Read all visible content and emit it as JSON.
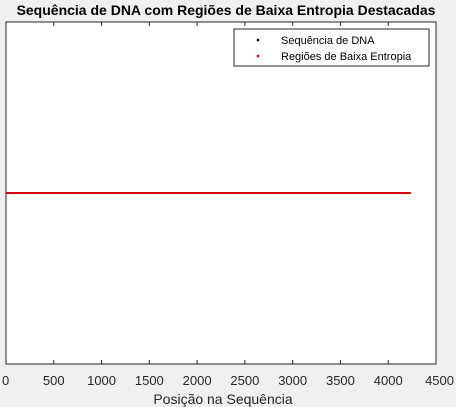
{
  "chart_data": {
    "type": "line",
    "title": "Sequência de DNA com Regiões de Baixa Entropia Destacadas",
    "xlabel": "Posição na Sequência",
    "ylabel": "",
    "xlim": [
      0,
      4500
    ],
    "x_ticks": [
      0,
      500,
      1000,
      1500,
      2000,
      2500,
      3000,
      3500,
      4000,
      4500
    ],
    "ylim": [
      0,
      2
    ],
    "grid": false,
    "legend_position": "top-right",
    "series": [
      {
        "name": "Sequência de DNA",
        "color": "#000000",
        "marker": "point",
        "x": [
          0,
          4236
        ],
        "y": [
          1,
          1
        ]
      },
      {
        "name": "Regiões de Baixa Entropia",
        "color": "#d40000",
        "marker": "point",
        "x": [
          0,
          4236
        ],
        "y": [
          1,
          1
        ]
      }
    ]
  }
}
